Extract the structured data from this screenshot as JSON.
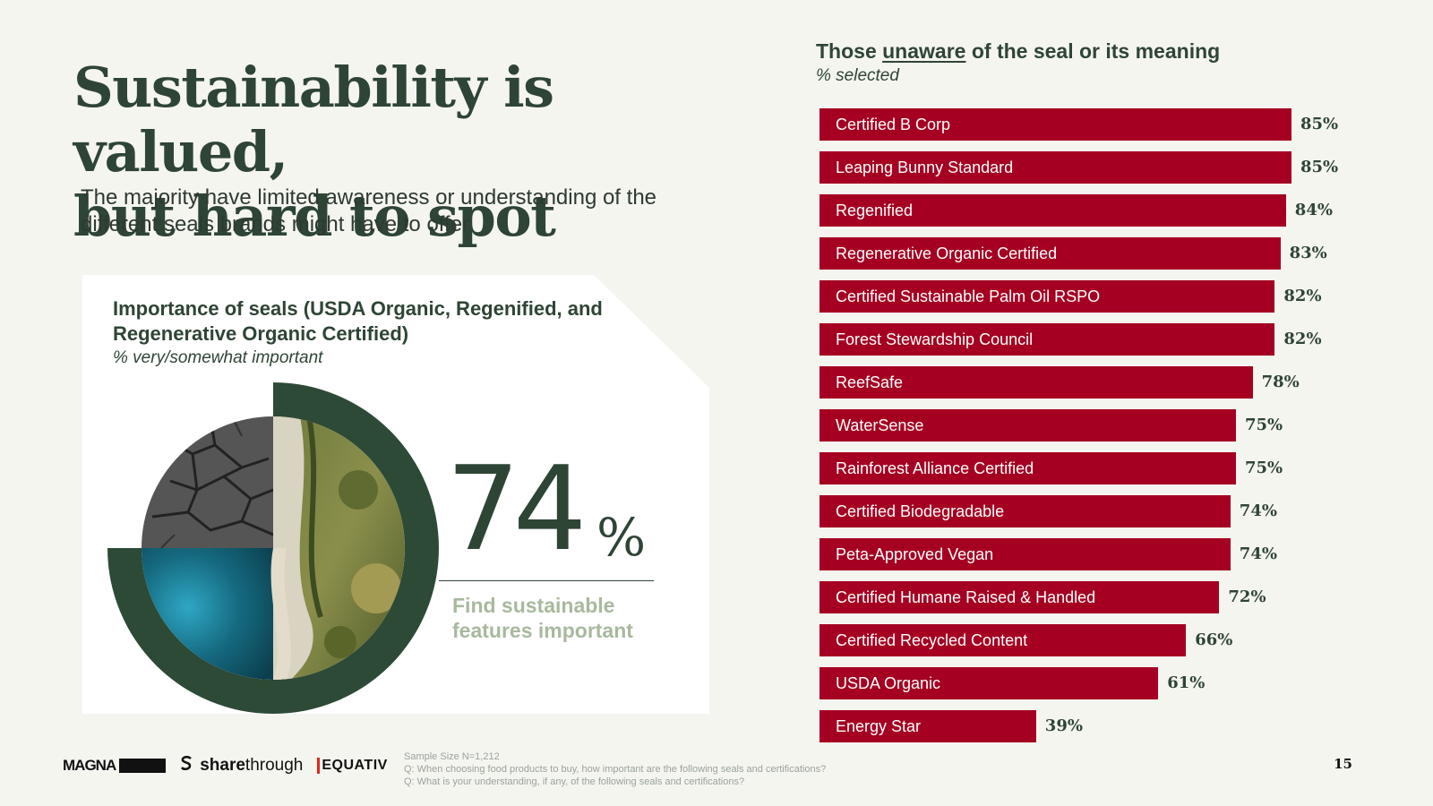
{
  "slide": {
    "title_line1": "Sustainability is valued,",
    "title_line2": "but hard to spot",
    "subtitle": "The majority have limited awareness or understanding of the different seals brands might have to offer",
    "page_number": "15"
  },
  "importance_panel": {
    "title": "Importance of seals (USDA Organic, Regenified, and Regenerative Organic Certified)",
    "subtitle": "% very/somewhat important",
    "big_number": "74",
    "big_suffix": "%",
    "big_label": "Find sustainable features important"
  },
  "chart_data": {
    "type": "bar",
    "orientation": "horizontal",
    "title_prefix": "Those",
    "title_emphasis": "unaware",
    "title_suffix": "of the seal or its meaning",
    "subtitle": "% selected",
    "categories": [
      "Certified B Corp",
      "Leaping Bunny Standard",
      "Regenified",
      "Regenerative Organic Certified",
      "Certified Sustainable Palm Oil RSPO",
      "Forest Stewardship Council",
      "ReefSafe",
      "WaterSense",
      "Rainforest Alliance Certified",
      "Certified Biodegradable",
      "Peta-Approved Vegan",
      "Certified Humane Raised & Handled",
      "Certified Recycled Content",
      "USDA Organic",
      "Energy Star"
    ],
    "values": [
      85,
      85,
      84,
      83,
      82,
      82,
      78,
      75,
      75,
      74,
      74,
      72,
      66,
      61,
      39
    ],
    "value_suffix": "%",
    "xlim": [
      0,
      100
    ],
    "bar_color": "#a50021",
    "label_color": "#ffffff",
    "value_color": "#2e4535"
  },
  "footer": {
    "logos": {
      "magna": "MAGNA",
      "sharethrough_bold": "share",
      "sharethrough_rest": "through",
      "equativ": "EQUATIV"
    },
    "notes": [
      "Sample Size N=1,212",
      "Q: When choosing food products to buy, how important are the following seals and certifications?",
      "Q: What is your understanding, if any, of the following seals and certifications?"
    ]
  },
  "colors": {
    "background": "#f5f5f0",
    "dark_green": "#2e4535",
    "sage": "#a8b99d",
    "bar_red": "#a50021"
  }
}
